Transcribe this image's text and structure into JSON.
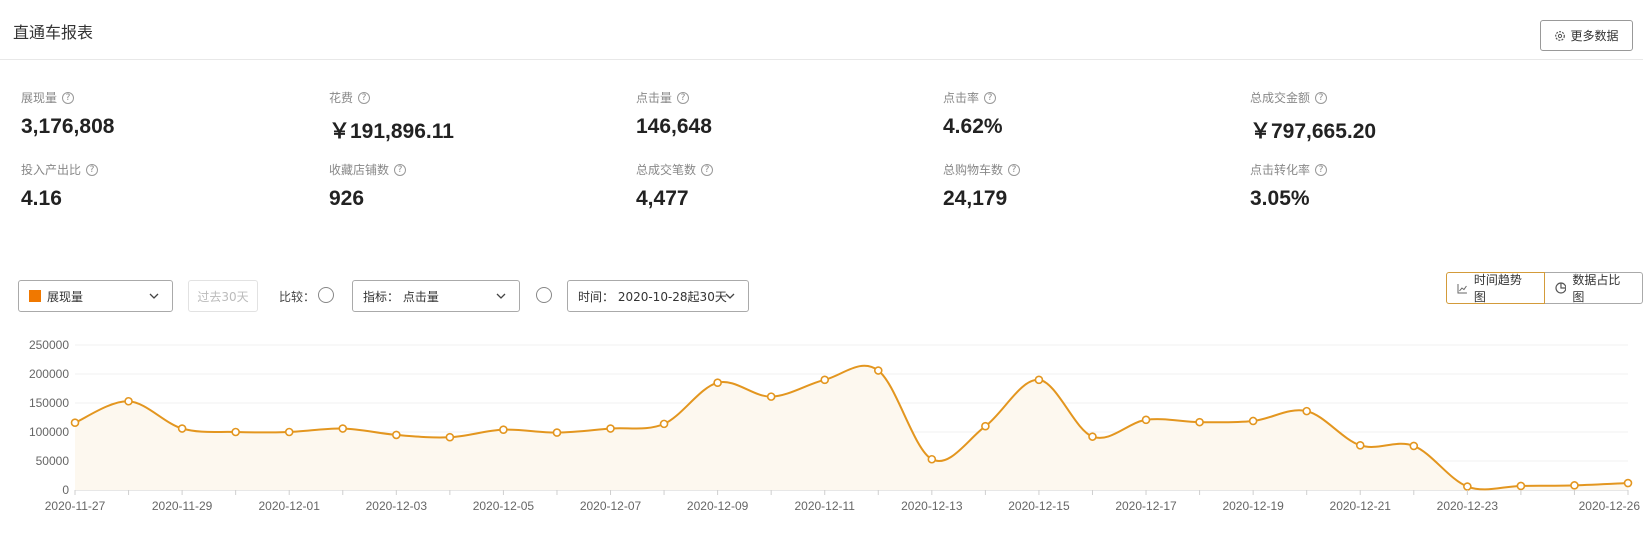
{
  "header": {
    "title": "直通车报表",
    "more_label": "更多数据"
  },
  "metrics": [
    {
      "label": "展现量",
      "value": "3,176,808"
    },
    {
      "label": "花费",
      "value": "￥191,896.11"
    },
    {
      "label": "点击量",
      "value": "146,648"
    },
    {
      "label": "点击率",
      "value": "4.62%"
    },
    {
      "label": "总成交金额",
      "value": "￥797,665.20"
    },
    {
      "label": "投入产出比",
      "value": "4.16"
    },
    {
      "label": "收藏店铺数",
      "value": "926"
    },
    {
      "label": "总成交笔数",
      "value": "4,477"
    },
    {
      "label": "总购物车数",
      "value": "24,179"
    },
    {
      "label": "点击转化率",
      "value": "3.05%"
    }
  ],
  "controls": {
    "metric_select": "展现量",
    "period_button": "过去30天",
    "compare_label": "比较：",
    "indicator_select": "指标：  点击量",
    "time_select": "时间：  2020-10-28起30天",
    "trend_view": "时间趋势图",
    "share_view": "数据占比图"
  },
  "colors": {
    "line": "#e3961f",
    "accent_swatch": "#f07800"
  },
  "chart_data": {
    "type": "area",
    "x": [
      "2020-11-27",
      "2020-11-28",
      "2020-11-29",
      "2020-11-30",
      "2020-12-01",
      "2020-12-02",
      "2020-12-03",
      "2020-12-04",
      "2020-12-05",
      "2020-12-06",
      "2020-12-07",
      "2020-12-08",
      "2020-12-09",
      "2020-12-10",
      "2020-12-11",
      "2020-12-12",
      "2020-12-13",
      "2020-12-14",
      "2020-12-15",
      "2020-12-16",
      "2020-12-17",
      "2020-12-18",
      "2020-12-19",
      "2020-12-20",
      "2020-12-21",
      "2020-12-22",
      "2020-12-23",
      "2020-12-24",
      "2020-12-25",
      "2020-12-26"
    ],
    "x_tick_labels": [
      "2020-11-27",
      "2020-11-29",
      "2020-12-01",
      "2020-12-03",
      "2020-12-05",
      "2020-12-07",
      "2020-12-09",
      "2020-12-11",
      "2020-12-13",
      "2020-12-15",
      "2020-12-17",
      "2020-12-19",
      "2020-12-21",
      "2020-12-23",
      "2020-12-26"
    ],
    "series": [
      {
        "values": [
          116000,
          153000,
          106000,
          100000,
          100000,
          106000,
          95000,
          91000,
          104000,
          99000,
          106000,
          114000,
          185000,
          161000,
          190000,
          206000,
          53000,
          110000,
          190000,
          92000,
          121000,
          117000,
          119000,
          136000,
          77000,
          76000,
          6000,
          7000,
          8000,
          12000
        ]
      }
    ],
    "ylim": [
      0,
      250000
    ],
    "y_ticks": [
      "0",
      "50000",
      "100000",
      "150000",
      "200000",
      "250000"
    ],
    "grid": true
  }
}
